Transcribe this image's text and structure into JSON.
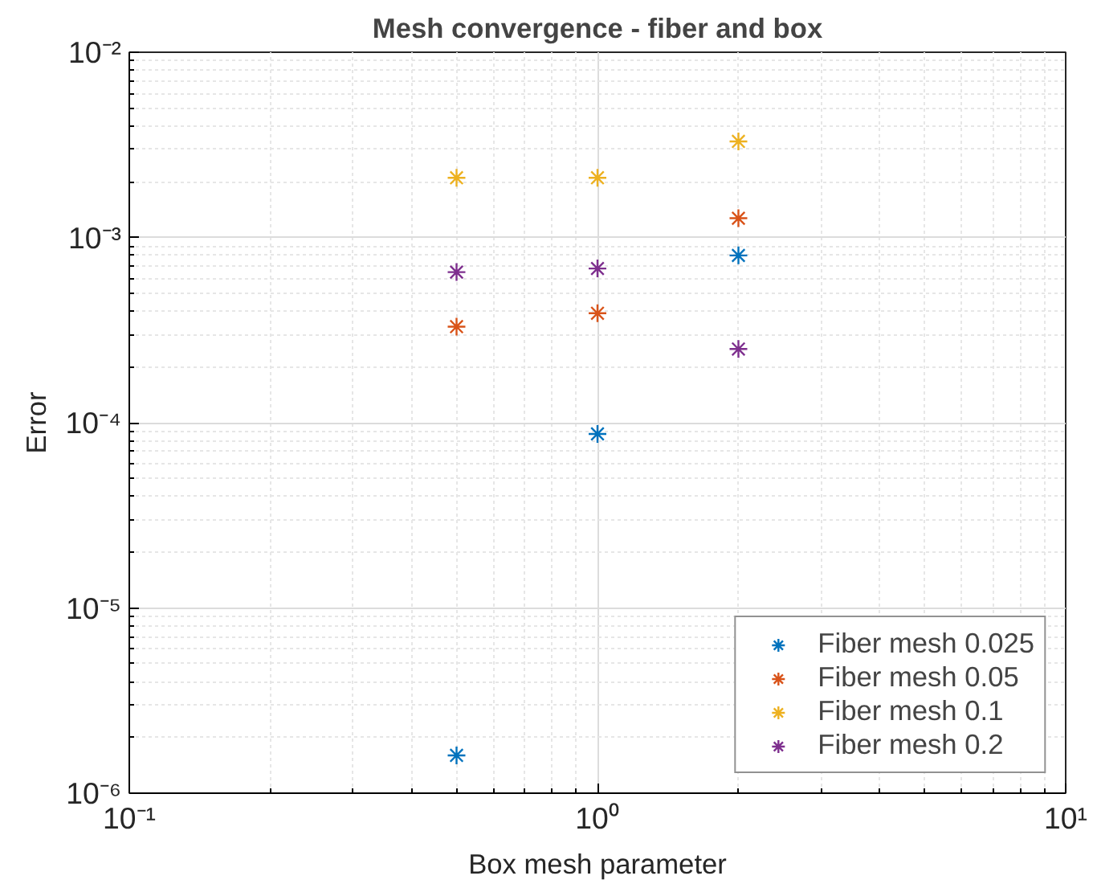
{
  "chart_data": {
    "type": "scatter",
    "title": "Mesh convergence - fiber and box",
    "xlabel": "Box mesh parameter",
    "ylabel": "Error",
    "x": [
      0.5,
      1,
      2
    ],
    "series": [
      {
        "name": "Fiber mesh 0.025",
        "color": "#0072bd",
        "values": [
          1.6e-06,
          8.7e-05,
          0.0008
        ]
      },
      {
        "name": "Fiber mesh 0.05",
        "color": "#d95319",
        "values": [
          0.00033,
          0.00039,
          0.00127
        ]
      },
      {
        "name": "Fiber mesh 0.1",
        "color": "#edb120",
        "values": [
          0.0021,
          0.0021,
          0.0033
        ]
      },
      {
        "name": "Fiber mesh 0.2",
        "color": "#7e2f8e",
        "values": [
          0.00065,
          0.00068,
          0.00025
        ]
      }
    ],
    "log": "xy",
    "grid": true,
    "legend": "bottom right",
    "marker": "cross",
    "xlim": [
      0.1,
      10
    ],
    "xticks": [
      {
        "value": 0.1,
        "label": "10⁻¹"
      },
      {
        "value": 1,
        "label": "10⁰"
      },
      {
        "value": 10,
        "label": "10¹"
      }
    ],
    "ylim": [
      1e-06,
      0.01
    ],
    "yticks": [
      {
        "value": 1e-06,
        "label": "10⁻⁶"
      },
      {
        "value": 1e-05,
        "label": "10⁻⁵"
      },
      {
        "value": 0.0001,
        "label": "10⁻⁴"
      },
      {
        "value": 0.001,
        "label": "10⁻³"
      },
      {
        "value": 0.01,
        "label": "10⁻²"
      }
    ]
  }
}
